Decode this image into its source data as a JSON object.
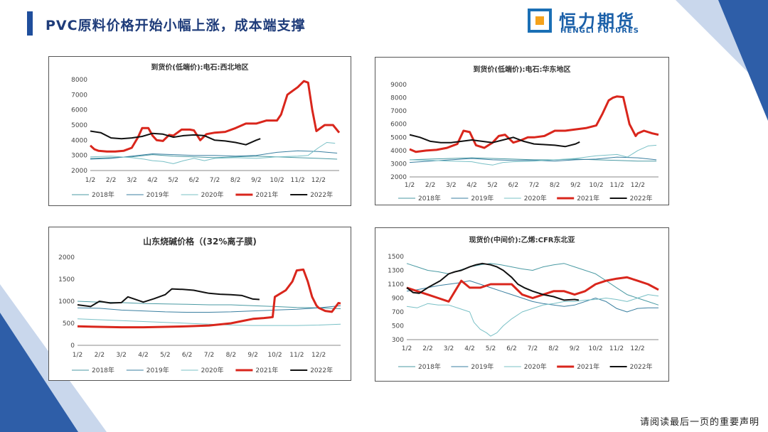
{
  "header": {
    "title": "PVC原料价格开始小幅上涨，成本端支撑",
    "logo_cn": "恒力期货",
    "logo_en": "HENGLI FUTURES"
  },
  "footer": {
    "note": "请阅读最后一页的重要声明"
  },
  "colors": {
    "red": "#d9261c",
    "black": "#111111",
    "teal": "#4a9aa3",
    "brand_blue": "#1f4e9c"
  },
  "chart_data": [
    {
      "type": "line",
      "title": "到货价(低端价):电石:西北地区",
      "x_ticks": [
        "1/2",
        "2/2",
        "3/2",
        "4/2",
        "5/2",
        "6/2",
        "7/2",
        "8/2",
        "9/2",
        "10/2",
        "11/2",
        "12/2"
      ],
      "ylim": [
        2000,
        8000
      ],
      "y_ticks": [
        "2000",
        "3000",
        "4000",
        "5000",
        "6000",
        "7000",
        "8000"
      ],
      "legend": "bottom",
      "series": [
        {
          "name": "2018年",
          "color": "#4a9aa3",
          "width": 1,
          "x": [
            0,
            1,
            2,
            3,
            4,
            5,
            6,
            7,
            8,
            9,
            10,
            11,
            11.9
          ],
          "y": [
            2800,
            2850,
            2900,
            3050,
            2950,
            2900,
            2850,
            2900,
            2950,
            2900,
            2850,
            2800,
            2750
          ]
        },
        {
          "name": "2019年",
          "color": "#3a7fa0",
          "width": 1,
          "x": [
            0,
            1,
            2,
            3,
            4,
            5,
            6,
            7,
            8,
            9,
            10,
            11,
            11.9
          ],
          "y": [
            2750,
            2800,
            2950,
            3100,
            3050,
            3000,
            3000,
            2950,
            3000,
            3200,
            3300,
            3250,
            3150
          ]
        },
        {
          "name": "2020年",
          "color": "#79c0c6",
          "width": 1,
          "x": [
            0,
            1,
            2,
            2.6,
            3,
            3.5,
            4,
            4.5,
            5,
            5.5,
            6,
            7,
            8,
            9,
            10,
            10.5,
            11,
            11.4,
            11.8
          ],
          "y": [
            2900,
            2950,
            2850,
            2750,
            2650,
            2600,
            2450,
            2650,
            2800,
            2650,
            2800,
            2850,
            2800,
            2900,
            2950,
            3000,
            3500,
            3850,
            3800
          ]
        },
        {
          "name": "2021年",
          "color": "#d9261c",
          "width": 3,
          "x": [
            0,
            0.2,
            0.4,
            0.8,
            1.2,
            1.6,
            2,
            2.3,
            2.5,
            2.8,
            3,
            3.2,
            3.5,
            3.8,
            4,
            4.4,
            4.8,
            5,
            5.3,
            5.6,
            6,
            6.5,
            7,
            7.5,
            8,
            8.5,
            9,
            9.2,
            9.5,
            9.8,
            10,
            10.3,
            10.5,
            10.7,
            10.9,
            11,
            11.3,
            11.7,
            12
          ],
          "y": [
            3650,
            3400,
            3300,
            3250,
            3250,
            3300,
            3500,
            4200,
            4800,
            4800,
            4300,
            4000,
            3950,
            4350,
            4300,
            4700,
            4700,
            4650,
            4000,
            4400,
            4500,
            4550,
            4800,
            5100,
            5100,
            5300,
            5300,
            5700,
            7000,
            7300,
            7500,
            7900,
            7800,
            6000,
            4600,
            4700,
            5000,
            5000,
            4500
          ]
        },
        {
          "name": "2022年",
          "color": "#111111",
          "width": 2,
          "x": [
            0,
            0.5,
            1,
            1.5,
            2,
            2.5,
            3,
            3.5,
            4,
            4.5,
            5,
            5.5,
            6,
            6.5,
            7,
            7.5,
            8,
            8.2
          ],
          "y": [
            4600,
            4500,
            4150,
            4100,
            4150,
            4250,
            4450,
            4400,
            4200,
            4300,
            4350,
            4300,
            4000,
            3950,
            3850,
            3700,
            4000,
            4100
          ]
        }
      ]
    },
    {
      "type": "line",
      "title": "到货价(低端价):电石:华东地区",
      "x_ticks": [
        "1/2",
        "2/2",
        "3/2",
        "4/2",
        "5/2",
        "6/2",
        "7/2",
        "8/2",
        "9/2",
        "10/2",
        "11/2",
        "12/2"
      ],
      "ylim": [
        2000,
        9000
      ],
      "y_ticks": [
        "2000",
        "3000",
        "4000",
        "5000",
        "6000",
        "7000",
        "8000",
        "9000"
      ],
      "legend": "bottom",
      "series": [
        {
          "name": "2018年",
          "color": "#4a9aa3",
          "width": 1,
          "x": [
            0,
            1,
            2,
            3,
            4,
            5,
            6,
            7,
            8,
            9,
            10,
            11,
            11.9
          ],
          "y": [
            3300,
            3350,
            3400,
            3450,
            3400,
            3350,
            3300,
            3300,
            3350,
            3300,
            3250,
            3200,
            3200
          ]
        },
        {
          "name": "2019年",
          "color": "#3a7fa0",
          "width": 1,
          "x": [
            0,
            1,
            2,
            3,
            4,
            5,
            6,
            7,
            8,
            9,
            10,
            11,
            11.9
          ],
          "y": [
            3100,
            3200,
            3300,
            3400,
            3300,
            3250,
            3250,
            3200,
            3300,
            3350,
            3500,
            3450,
            3300
          ]
        },
        {
          "name": "2020年",
          "color": "#79c0c6",
          "width": 1,
          "x": [
            0,
            1,
            2,
            3,
            3.5,
            4,
            4.5,
            5,
            6,
            7,
            8,
            9,
            10,
            10.5,
            11,
            11.5,
            11.9
          ],
          "y": [
            3300,
            3250,
            3200,
            3150,
            3000,
            2900,
            3100,
            3150,
            3200,
            3300,
            3400,
            3600,
            3700,
            3500,
            4000,
            4350,
            4400
          ]
        },
        {
          "name": "2021年",
          "color": "#d9261c",
          "width": 3,
          "x": [
            0,
            0.3,
            0.8,
            1.3,
            1.8,
            2.3,
            2.6,
            2.9,
            3.2,
            3.6,
            4,
            4.3,
            4.6,
            5,
            5.4,
            5.7,
            6,
            6.5,
            7,
            7.5,
            8,
            8.5,
            9,
            9.3,
            9.6,
            9.8,
            10,
            10.3,
            10.6,
            10.9,
            11,
            11.3,
            11.7,
            12
          ],
          "y": [
            4100,
            3900,
            4000,
            4050,
            4200,
            4500,
            5500,
            5400,
            4400,
            4200,
            4600,
            5100,
            5200,
            4600,
            4800,
            5000,
            5000,
            5100,
            5500,
            5500,
            5600,
            5700,
            5900,
            6800,
            7800,
            8000,
            8100,
            8050,
            6000,
            5100,
            5300,
            5500,
            5300,
            5200
          ]
        },
        {
          "name": "2022年",
          "color": "#111111",
          "width": 2,
          "x": [
            0,
            0.5,
            1,
            1.5,
            2,
            2.5,
            3,
            3.5,
            4,
            4.5,
            5,
            5.5,
            6,
            6.5,
            7,
            7.5,
            8,
            8.2
          ],
          "y": [
            5200,
            5000,
            4700,
            4600,
            4600,
            4700,
            4800,
            4700,
            4600,
            4800,
            5000,
            4700,
            4500,
            4450,
            4400,
            4300,
            4500,
            4650
          ]
        }
      ]
    },
    {
      "type": "line",
      "title": "山东烧碱价格（(32%离子膜)",
      "x_ticks": [
        "1/2",
        "2/2",
        "3/2",
        "4/2",
        "5/2",
        "6/2",
        "7/2",
        "8/2",
        "9/2",
        "10/2",
        "11/2",
        "12/2"
      ],
      "ylim": [
        0,
        2000
      ],
      "y_ticks": [
        "0",
        "500",
        "1000",
        "1500",
        "2000"
      ],
      "legend": "bottom",
      "series": [
        {
          "name": "2018年",
          "color": "#4a9aa3",
          "width": 1,
          "x": [
            0,
            1,
            2,
            3,
            4,
            5,
            6,
            7,
            8,
            9,
            10,
            11,
            12
          ],
          "y": [
            1000,
            980,
            970,
            950,
            940,
            930,
            920,
            920,
            900,
            880,
            860,
            850,
            830
          ]
        },
        {
          "name": "2019年",
          "color": "#3a7fa0",
          "width": 1,
          "x": [
            0,
            1,
            2,
            3,
            4,
            5,
            6,
            7,
            8,
            9,
            10,
            11,
            12
          ],
          "y": [
            850,
            840,
            800,
            780,
            760,
            750,
            750,
            760,
            780,
            800,
            820,
            850,
            900
          ]
        },
        {
          "name": "2020年",
          "color": "#79c0c6",
          "width": 1,
          "x": [
            0,
            1,
            2,
            3,
            4,
            5,
            6,
            7,
            8,
            9,
            10,
            11,
            12
          ],
          "y": [
            600,
            580,
            560,
            540,
            520,
            500,
            480,
            460,
            450,
            450,
            450,
            460,
            480
          ]
        },
        {
          "name": "2021年",
          "color": "#d9261c",
          "width": 3,
          "x": [
            0,
            1,
            2,
            3,
            4,
            5,
            6,
            7,
            7.5,
            8,
            8.5,
            8.9,
            9,
            9.5,
            9.8,
            10,
            10.3,
            10.5,
            10.7,
            10.9,
            11,
            11.3,
            11.6,
            11.9,
            12
          ],
          "y": [
            430,
            420,
            410,
            410,
            420,
            430,
            450,
            500,
            550,
            600,
            620,
            640,
            1100,
            1250,
            1450,
            1700,
            1720,
            1450,
            1100,
            900,
            850,
            780,
            760,
            960,
            950
          ]
        },
        {
          "name": "2022年",
          "color": "#111111",
          "width": 2,
          "x": [
            0,
            0.6,
            1,
            1.5,
            2,
            2.3,
            2.6,
            3,
            3.5,
            4,
            4.3,
            4.8,
            5.3,
            5.8,
            6,
            6.5,
            7,
            7.5,
            8,
            8.3
          ],
          "y": [
            920,
            880,
            1000,
            960,
            970,
            1100,
            1050,
            980,
            1060,
            1150,
            1280,
            1270,
            1250,
            1200,
            1180,
            1160,
            1150,
            1130,
            1050,
            1040
          ]
        }
      ]
    },
    {
      "type": "line",
      "title": "现货价(中间价):乙烯:CFR东北亚",
      "x_ticks": [
        "1/2",
        "2/2",
        "3/2",
        "4/2",
        "5/2",
        "6/2",
        "7/2",
        "8/2",
        "9/2",
        "10/2",
        "11/2",
        "12/2"
      ],
      "ylim": [
        300,
        1500
      ],
      "y_ticks": [
        "300",
        "500",
        "700",
        "900",
        "1100",
        "1300",
        "1500"
      ],
      "legend": "bottom",
      "series": [
        {
          "name": "2018年",
          "color": "#4a9aa3",
          "width": 1,
          "x": [
            0,
            0.5,
            1,
            1.5,
            2,
            2.5,
            3,
            3.5,
            4,
            4.5,
            5,
            5.5,
            6,
            6.5,
            7,
            7.5,
            8,
            8.5,
            9,
            9.5,
            10,
            10.5,
            11,
            11.5,
            12
          ],
          "y": [
            1400,
            1350,
            1300,
            1280,
            1250,
            1300,
            1350,
            1380,
            1400,
            1380,
            1350,
            1320,
            1300,
            1350,
            1380,
            1400,
            1350,
            1300,
            1250,
            1150,
            1050,
            950,
            900,
            850,
            800
          ]
        },
        {
          "name": "2019年",
          "color": "#3a7fa0",
          "width": 1,
          "x": [
            0,
            0.5,
            1,
            1.5,
            2,
            2.5,
            3,
            3.5,
            4,
            4.5,
            5,
            5.5,
            6,
            6.5,
            7,
            7.5,
            8,
            8.5,
            9,
            9.5,
            10,
            10.5,
            11,
            11.5,
            12
          ],
          "y": [
            1000,
            1020,
            1050,
            1080,
            1100,
            1120,
            1150,
            1100,
            1050,
            1000,
            950,
            900,
            850,
            820,
            800,
            780,
            800,
            850,
            900,
            850,
            750,
            700,
            750,
            760,
            760
          ]
        },
        {
          "name": "2020年",
          "color": "#79c0c6",
          "width": 1,
          "x": [
            0,
            0.5,
            1,
            1.5,
            2,
            2.5,
            3,
            3.2,
            3.5,
            3.8,
            4,
            4.3,
            4.6,
            5,
            5.5,
            6,
            6.5,
            7,
            7.5,
            8,
            8.5,
            9,
            9.5,
            10,
            10.5,
            11,
            11.5,
            12
          ],
          "y": [
            780,
            760,
            820,
            800,
            800,
            750,
            700,
            550,
            450,
            400,
            350,
            400,
            500,
            600,
            700,
            750,
            800,
            820,
            850,
            850,
            870,
            880,
            900,
            880,
            850,
            900,
            950,
            930
          ]
        },
        {
          "name": "2021年",
          "color": "#d9261c",
          "width": 3,
          "x": [
            0,
            0.5,
            1,
            1.5,
            2,
            2.3,
            2.6,
            3,
            3.5,
            4,
            4.5,
            5,
            5.5,
            6,
            6.5,
            7,
            7.5,
            8,
            8.5,
            9,
            9.5,
            10,
            10.5,
            11,
            11.5,
            12
          ],
          "y": [
            1050,
            1000,
            950,
            900,
            850,
            1000,
            1150,
            1050,
            1050,
            1100,
            1100,
            1100,
            950,
            900,
            950,
            1000,
            1000,
            950,
            1000,
            1100,
            1150,
            1180,
            1200,
            1150,
            1100,
            1020
          ]
        },
        {
          "name": "2022年",
          "color": "#111111",
          "width": 2,
          "x": [
            0,
            0.3,
            0.6,
            1,
            1.3,
            1.6,
            2,
            2.3,
            2.6,
            3,
            3.3,
            3.6,
            4,
            4.3,
            4.6,
            5,
            5.3,
            5.6,
            6,
            6.5,
            7,
            7.5,
            8,
            8.2
          ],
          "y": [
            1050,
            980,
            970,
            1050,
            1100,
            1150,
            1250,
            1280,
            1300,
            1350,
            1380,
            1400,
            1380,
            1350,
            1300,
            1200,
            1100,
            1050,
            1000,
            950,
            920,
            870,
            880,
            870
          ]
        }
      ]
    }
  ]
}
